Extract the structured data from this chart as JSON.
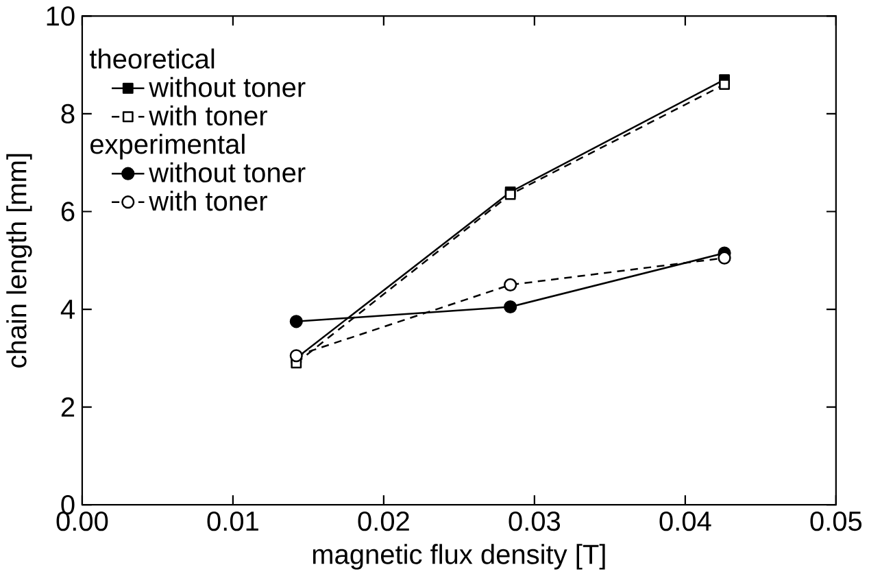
{
  "chart_data": {
    "type": "line",
    "xlabel": "magnetic flux density [T]",
    "ylabel": "chain length [mm]",
    "x": [
      0.0142,
      0.0284,
      0.0426
    ],
    "series": [
      {
        "name": "without toner",
        "color": "#000000",
        "values": [
          3.0,
          6.4,
          8.7
        ],
        "marker": "square",
        "line_style": "solid"
      },
      {
        "name": "with toner",
        "color": "#000000",
        "values": [
          2.9,
          6.35,
          8.6
        ],
        "marker": "square",
        "line_style": "dashed"
      },
      {
        "name": "without toner",
        "color": "#000000",
        "values": [
          3.75,
          4.05,
          5.15
        ],
        "marker": "circle",
        "line_style": "solid"
      },
      {
        "name": "with toner",
        "color": "#000000",
        "values": [
          3.05,
          4.5,
          5.05
        ],
        "marker": "circle",
        "line_style": "dashed"
      }
    ],
    "annotations": [
      "theoretical",
      "experimental"
    ],
    "xlim": [
      0,
      0.05
    ],
    "ylim": [
      0,
      10
    ],
    "xticks": [
      {
        "value": 0,
        "label": "0.00"
      },
      {
        "value": 0.01,
        "label": "0.01"
      },
      {
        "value": 0.02,
        "label": "0.02"
      },
      {
        "value": 0.03,
        "label": "0.03"
      },
      {
        "value": 0.04,
        "label": "0.04"
      },
      {
        "value": 0.05,
        "label": "0.05"
      }
    ],
    "yticks": [
      0,
      2,
      4,
      6,
      8,
      10
    ],
    "grid": false,
    "legend": "top left"
  }
}
